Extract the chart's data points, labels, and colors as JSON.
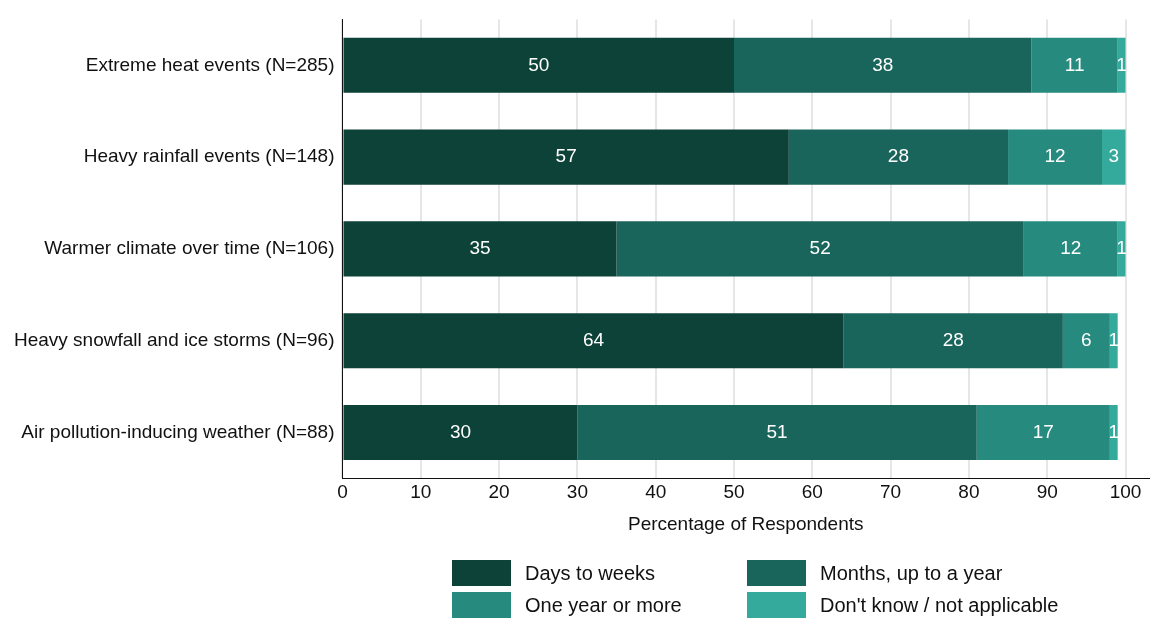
{
  "chart_data": {
    "type": "bar",
    "orientation": "horizontal",
    "stacked": true,
    "xlabel": "Percentage of Respondents",
    "categories": [
      "Extreme heat events (N=285)",
      "Heavy rainfall events (N=148)",
      "Warmer climate over time (N=106)",
      "Heavy snowfall and ice storms (N=96)",
      "Air pollution-inducing weather (N=88)"
    ],
    "series": [
      {
        "name": "Days to weeks",
        "color": "#0d4238",
        "values": [
          50,
          57,
          35,
          64,
          30
        ]
      },
      {
        "name": "Months, up to a year",
        "color": "#1a655b",
        "values": [
          38,
          28,
          52,
          28,
          51
        ]
      },
      {
        "name": "One year or more",
        "color": "#268a7e",
        "values": [
          11,
          12,
          12,
          6,
          17
        ]
      },
      {
        "name": "Don't know / not applicable",
        "color": "#33aa9c",
        "values": [
          1,
          3,
          1,
          1,
          1
        ]
      }
    ],
    "xlim": [
      0,
      103
    ],
    "xticks": [
      0,
      10,
      20,
      30,
      40,
      50,
      60,
      70,
      80,
      90,
      100
    ],
    "grid": "x",
    "legend": "bottom",
    "data_labels": true
  }
}
